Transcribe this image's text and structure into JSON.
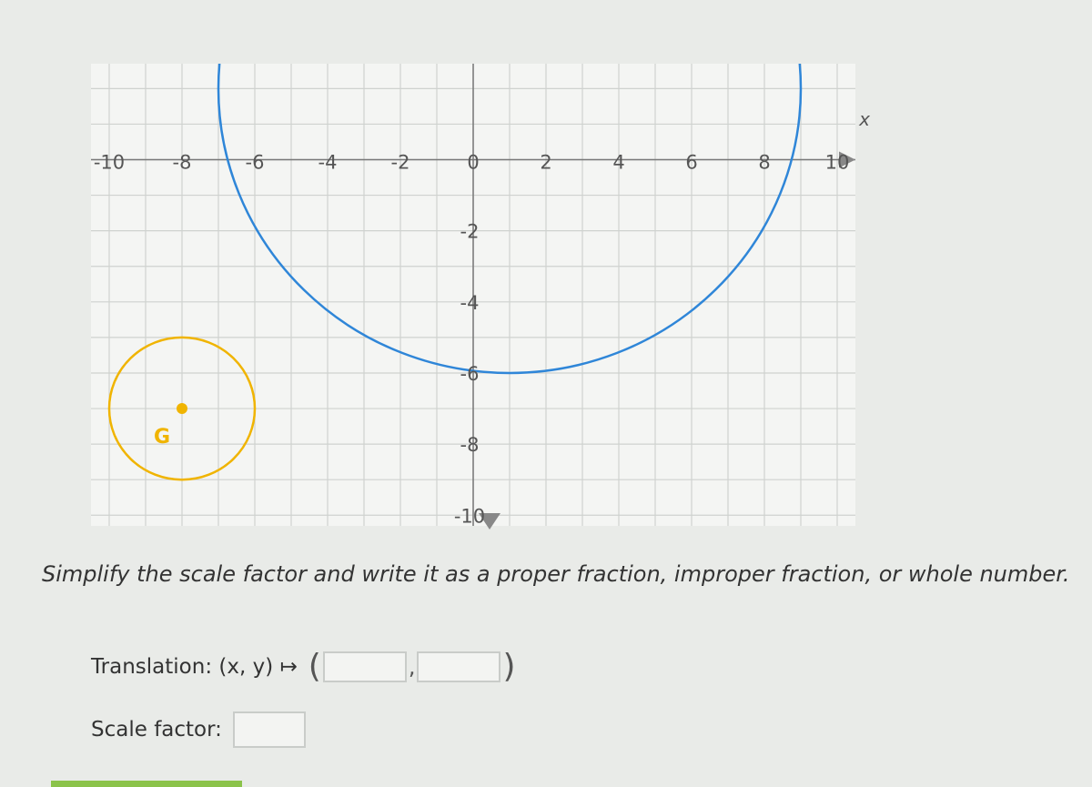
{
  "graph": {
    "xlim": [
      -10.5,
      10.5
    ],
    "ylim": [
      -10.3,
      2.7
    ],
    "grid_step": 1,
    "xticks": [
      -10,
      -8,
      -6,
      -4,
      -2,
      0,
      2,
      4,
      6,
      8,
      10
    ],
    "yticks": [
      -2,
      -4,
      -6,
      -8,
      -10
    ],
    "x_axis_label": "x",
    "circles": [
      {
        "label": "G",
        "center": [
          -8,
          -7
        ],
        "radius": 2,
        "color": "#f0b400"
      },
      {
        "center": [
          1,
          2
        ],
        "radius": 8,
        "color": "#2f86d8"
      }
    ]
  },
  "instruction": "Simplify the scale factor and write it as a proper fraction, improper fraction, or whole number.",
  "translation": {
    "label": "Translation: (x, y) ↦",
    "open": "(",
    "separator": ",",
    "close": ")"
  },
  "scale_factor": {
    "label": "Scale factor:"
  }
}
